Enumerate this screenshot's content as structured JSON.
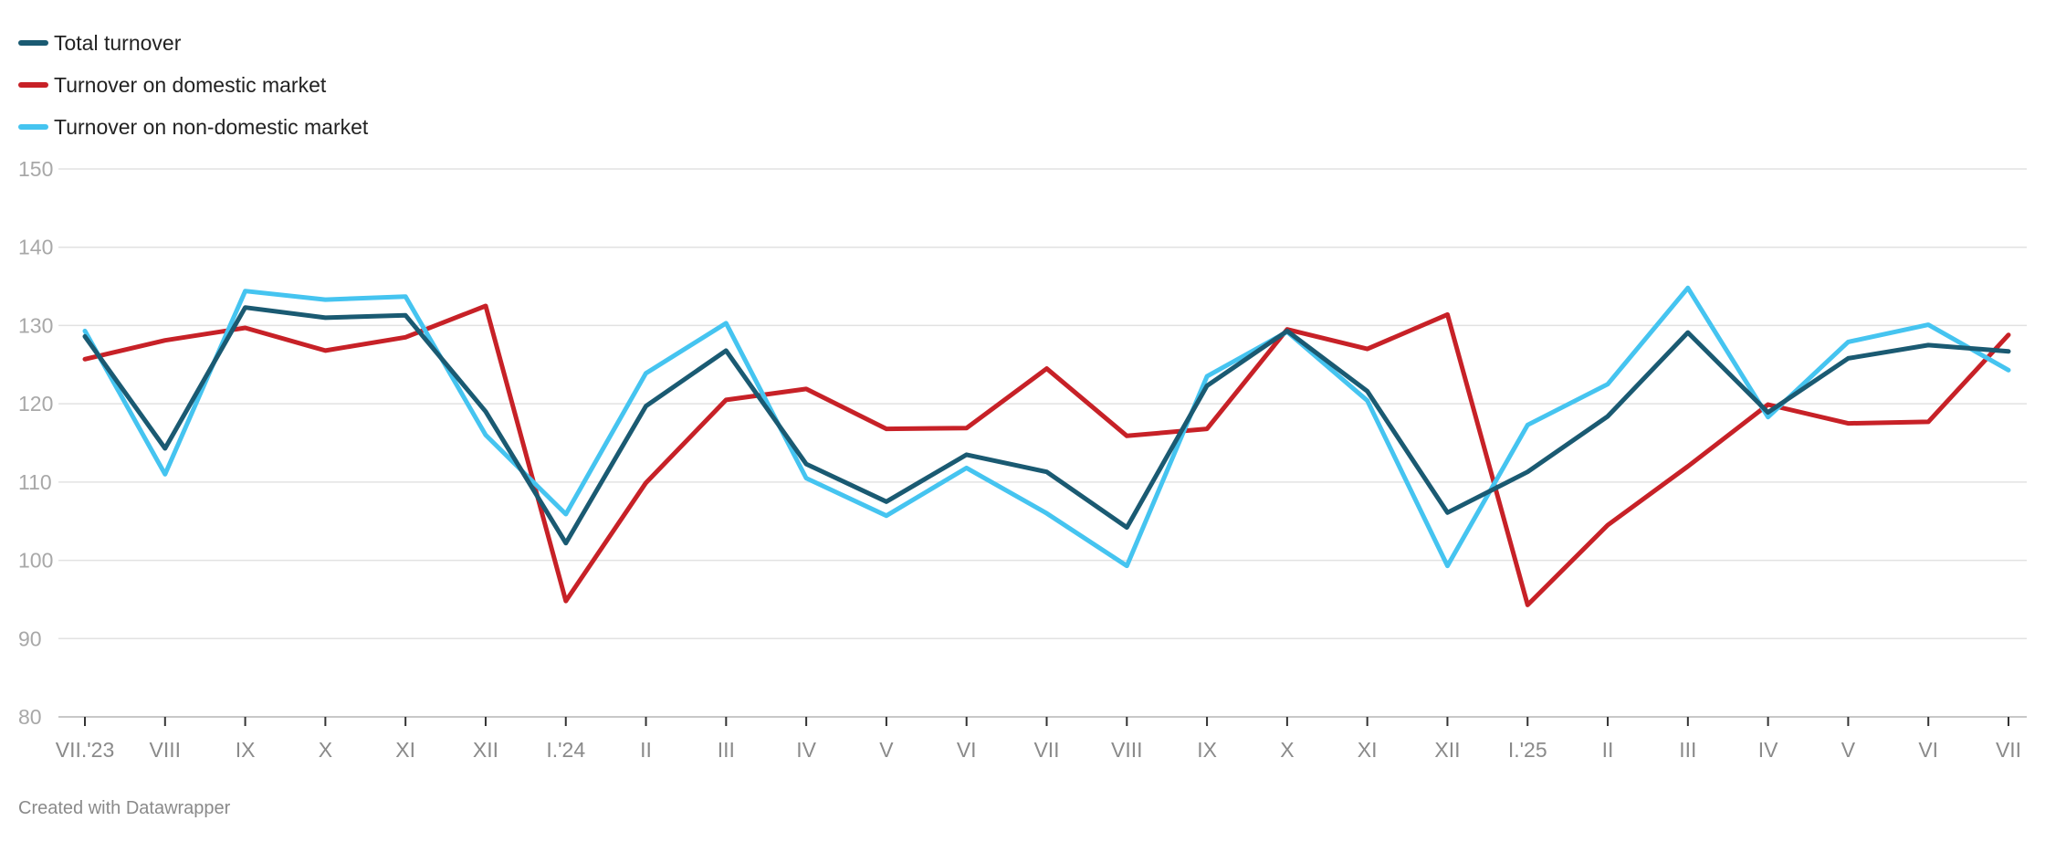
{
  "legend": [
    {
      "label": "Total turnover",
      "color": "#1a5a72"
    },
    {
      "label": "Turnover on domestic market",
      "color": "#c72127"
    },
    {
      "label": "Turnover on non-domestic market",
      "color": "#45c4f0"
    }
  ],
  "credit": "Created with Datawrapper",
  "chart_data": {
    "type": "line",
    "title": "",
    "xlabel": "",
    "ylabel": "",
    "ylim": [
      80,
      150
    ],
    "yticks": [
      80,
      90,
      100,
      110,
      120,
      130,
      140,
      150
    ],
    "grid": true,
    "legend_position": "top-left",
    "categories": [
      "VII.'23",
      "VIII",
      "IX",
      "X",
      "XI",
      "XII",
      "I.'24",
      "II",
      "III",
      "IV",
      "V",
      "VI",
      "VII",
      "VIII",
      "IX",
      "X",
      "XI",
      "XII",
      "I.'25",
      "II",
      "III",
      "IV",
      "V",
      "VI",
      "VII"
    ],
    "series": [
      {
        "name": "Total turnover",
        "color": "#1a5a72",
        "values": [
          128.6,
          114.3,
          132.3,
          131.0,
          131.3,
          119.0,
          102.2,
          119.7,
          126.8,
          112.3,
          107.5,
          113.5,
          111.3,
          104.2,
          122.3,
          129.3,
          121.6,
          106.1,
          111.3,
          118.4,
          129.1,
          118.9,
          125.8,
          127.5,
          126.7
        ]
      },
      {
        "name": "Turnover on domestic market",
        "color": "#c72127",
        "values": [
          125.7,
          128.1,
          129.7,
          126.8,
          128.5,
          132.5,
          94.8,
          109.9,
          120.5,
          121.9,
          116.8,
          116.9,
          124.5,
          115.9,
          116.8,
          129.5,
          127.0,
          131.4,
          94.3,
          104.5,
          112.0,
          119.9,
          117.5,
          117.7,
          128.8
        ]
      },
      {
        "name": "Turnover on non-domestic market",
        "color": "#45c4f0",
        "values": [
          129.3,
          111.0,
          134.4,
          133.3,
          133.7,
          116.0,
          105.9,
          123.9,
          130.3,
          110.5,
          105.7,
          111.8,
          106.0,
          99.3,
          123.5,
          129.2,
          120.4,
          99.3,
          117.3,
          122.5,
          134.8,
          118.3,
          127.9,
          130.1,
          124.3
        ]
      }
    ]
  }
}
